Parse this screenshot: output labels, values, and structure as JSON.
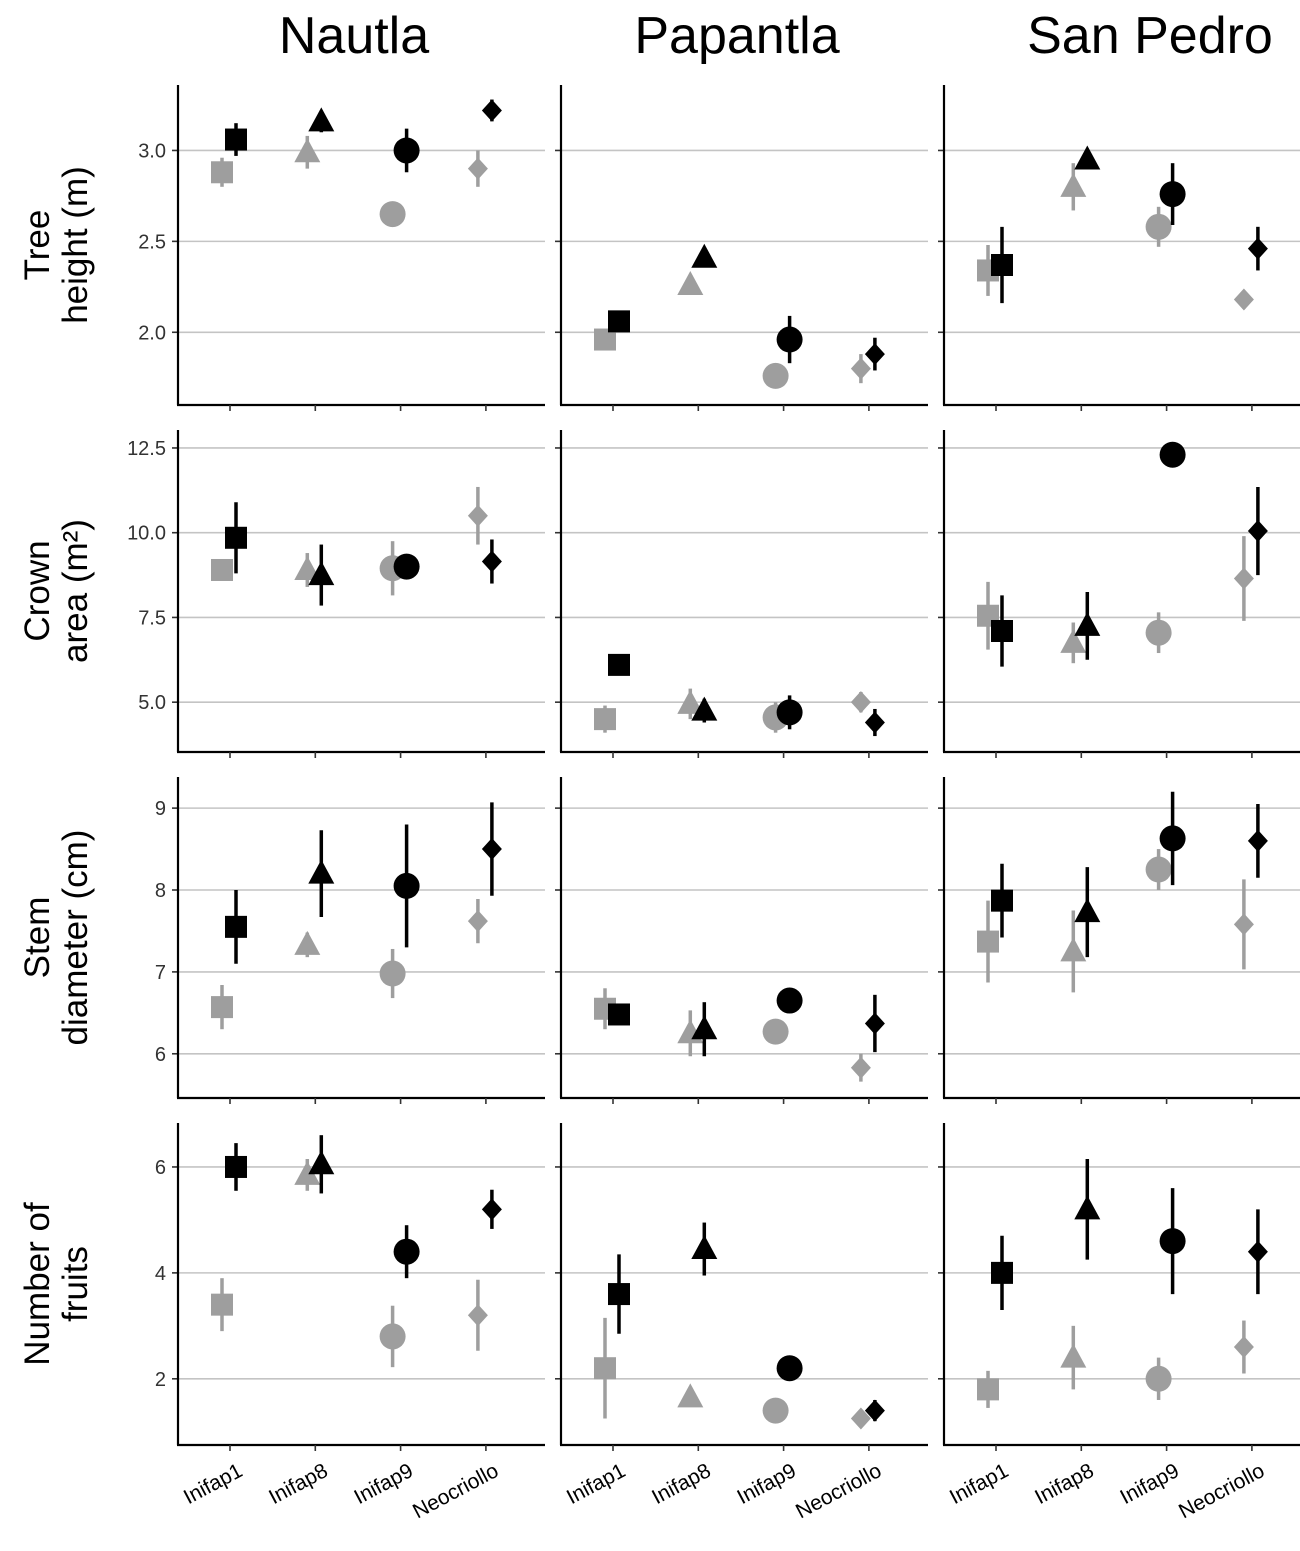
{
  "chart_data": {
    "type": "scatter",
    "columns": [
      "Nautla",
      "Papantla",
      "San Pedro"
    ],
    "categories": [
      "Inifap1",
      "Inifap8",
      "Inifap9",
      "Neocriollo"
    ],
    "markers": [
      "square",
      "triangle",
      "circle",
      "diamond"
    ],
    "series_colors": [
      "#9e9e9e",
      "#000000"
    ],
    "grid": "horizontal",
    "legend": "none",
    "rows": [
      {
        "ylabel": [
          "Tree",
          "height (m)"
        ],
        "ylim": [
          1.6,
          3.36
        ],
        "yticks": [
          2.0,
          2.5,
          3.0
        ],
        "tick_labels": [
          "2.0",
          "2.5",
          "3.0"
        ],
        "panels": [
          {
            "grey": {
              "values": [
                2.88,
                2.99,
                2.65,
                2.9
              ],
              "errors": [
                0.08,
                0.09,
                0.03,
                0.1
              ]
            },
            "black": {
              "values": [
                3.06,
                3.16,
                3.0,
                3.22
              ],
              "errors": [
                0.09,
                0.06,
                0.12,
                0.06
              ]
            }
          },
          {
            "grey": {
              "values": [
                1.96,
                2.26,
                1.76,
                1.8
              ],
              "errors": [
                0.04,
                0.04,
                0.03,
                0.08
              ]
            },
            "black": {
              "values": [
                2.06,
                2.41,
                1.96,
                1.88
              ],
              "errors": [
                0.03,
                0.04,
                0.13,
                0.09
              ]
            }
          },
          {
            "grey": {
              "values": [
                2.34,
                2.8,
                2.58,
                2.18
              ],
              "errors": [
                0.14,
                0.13,
                0.11,
                0.05
              ]
            },
            "black": {
              "values": [
                2.37,
                2.95,
                2.76,
                2.46
              ],
              "errors": [
                0.21,
                0.03,
                0.17,
                0.12
              ]
            }
          }
        ]
      },
      {
        "ylabel": [
          "Crown",
          "area (m²)"
        ],
        "ylim": [
          3.53,
          13.03
        ],
        "yticks": [
          5.0,
          7.5,
          10.0,
          12.5
        ],
        "tick_labels": [
          "5.0",
          "7.5",
          "10.0",
          "12.5"
        ],
        "panels": [
          {
            "grey": {
              "values": [
                8.9,
                8.9,
                8.95,
                10.5
              ],
              "errors": [
                0.2,
                0.5,
                0.8,
                0.85
              ]
            },
            "black": {
              "values": [
                9.85,
                8.75,
                9.0,
                9.15
              ],
              "errors": [
                1.05,
                0.9,
                0.2,
                0.65
              ]
            }
          },
          {
            "grey": {
              "values": [
                4.5,
                4.95,
                4.55,
                5.0
              ],
              "errors": [
                0.4,
                0.45,
                0.45,
                0.3
              ]
            },
            "black": {
              "values": [
                6.1,
                4.75,
                4.7,
                4.4
              ],
              "errors": [
                0.2,
                0.35,
                0.5,
                0.4
              ]
            }
          },
          {
            "grey": {
              "values": [
                7.55,
                6.75,
                7.05,
                8.65
              ],
              "errors": [
                1.0,
                0.6,
                0.6,
                1.25
              ]
            },
            "black": {
              "values": [
                7.1,
                7.25,
                12.3,
                10.05
              ],
              "errors": [
                1.05,
                1.0,
                0.2,
                1.3
              ]
            }
          }
        ]
      },
      {
        "ylabel": [
          "Stem",
          "diameter (cm)"
        ],
        "ylim": [
          5.46,
          9.38
        ],
        "yticks": [
          6,
          7,
          8,
          9
        ],
        "tick_labels": [
          "6",
          "7",
          "8",
          "9"
        ],
        "panels": [
          {
            "grey": {
              "values": [
                6.57,
                7.33,
                6.98,
                7.62
              ],
              "errors": [
                0.27,
                0.15,
                0.3,
                0.27
              ]
            },
            "black": {
              "values": [
                7.55,
                8.2,
                8.05,
                8.5
              ],
              "errors": [
                0.45,
                0.53,
                0.75,
                0.57
              ]
            }
          },
          {
            "grey": {
              "values": [
                6.55,
                6.25,
                6.27,
                5.83
              ],
              "errors": [
                0.25,
                0.28,
                0.05,
                0.17
              ]
            },
            "black": {
              "values": [
                6.48,
                6.3,
                6.65,
                6.37
              ],
              "errors": [
                0.05,
                0.33,
                0.05,
                0.35
              ]
            }
          },
          {
            "grey": {
              "values": [
                7.37,
                7.25,
                8.25,
                7.58
              ],
              "errors": [
                0.5,
                0.5,
                0.25,
                0.55
              ]
            },
            "black": {
              "values": [
                7.87,
                7.73,
                8.63,
                8.6
              ],
              "errors": [
                0.45,
                0.55,
                0.57,
                0.45
              ]
            }
          }
        ]
      },
      {
        "ylabel": [
          "Number of",
          "fruits"
        ],
        "ylim": [
          0.75,
          6.83
        ],
        "yticks": [
          2,
          4,
          6
        ],
        "tick_labels": [
          "2",
          "4",
          "6"
        ],
        "panels": [
          {
            "grey": {
              "values": [
                3.4,
                5.85,
                2.8,
                3.2
              ],
              "errors": [
                0.5,
                0.3,
                0.58,
                0.67
              ]
            },
            "black": {
              "values": [
                6.0,
                6.05,
                4.4,
                5.2
              ],
              "errors": [
                0.45,
                0.55,
                0.5,
                0.37
              ]
            }
          },
          {
            "grey": {
              "values": [
                2.2,
                1.65,
                1.4,
                1.25
              ],
              "errors": [
                0.95,
                0.15,
                0.05,
                0.1
              ]
            },
            "black": {
              "values": [
                3.6,
                4.45,
                2.2,
                1.4
              ],
              "errors": [
                0.75,
                0.5,
                0.05,
                0.2
              ]
            }
          },
          {
            "grey": {
              "values": [
                1.8,
                2.4,
                2.0,
                2.6
              ],
              "errors": [
                0.35,
                0.6,
                0.4,
                0.5
              ]
            },
            "black": {
              "values": [
                4.0,
                5.2,
                4.6,
                4.4
              ],
              "errors": [
                0.7,
                0.95,
                1.0,
                0.8
              ]
            }
          }
        ]
      }
    ]
  }
}
